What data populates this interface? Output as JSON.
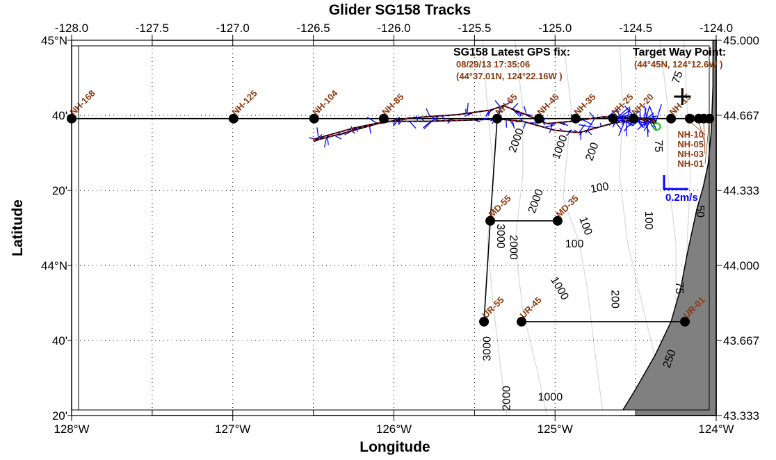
{
  "chart_data": {
    "type": "map",
    "title": "Glider SG158 Tracks",
    "xlabel": "Longitude",
    "ylabel": "Latitude",
    "xlim": [
      -128.0,
      -124.0
    ],
    "ylim": [
      43.333,
      45.0
    ],
    "grid": true,
    "top_ticks": [
      "-128.0",
      "-127.5",
      "-127.0",
      "-126.5",
      "-126.0",
      "-125.5",
      "-125.0",
      "-124.5",
      "-124.0"
    ],
    "bottom_ticks": [
      {
        "lon": -128,
        "label": "128°W"
      },
      {
        "lon": -127,
        "label": "127°W"
      },
      {
        "lon": -126,
        "label": "126°W"
      },
      {
        "lon": -125,
        "label": "125°W"
      },
      {
        "lon": -124,
        "label": "124°W"
      }
    ],
    "left_ticks": [
      {
        "lat": 45.0,
        "label": "45°N"
      },
      {
        "lat": 44.667,
        "label": "40'"
      },
      {
        "lat": 44.333,
        "label": "20'"
      },
      {
        "lat": 44.0,
        "label": "44°N"
      },
      {
        "lat": 43.667,
        "label": "40'"
      },
      {
        "lat": 43.333,
        "label": "20'"
      }
    ],
    "right_ticks": [
      "45.000",
      "44.667",
      "44.333",
      "44.000",
      "43.667",
      "43.333"
    ],
    "stations": [
      {
        "name": "NH-168",
        "lon": -128.0,
        "lat": 44.652
      },
      {
        "name": "NH-125",
        "lon": -126.995,
        "lat": 44.652
      },
      {
        "name": "NH-104",
        "lon": -126.495,
        "lat": 44.652
      },
      {
        "name": "NH-85",
        "lon": -126.063,
        "lat": 44.652
      },
      {
        "name": "NH-65",
        "lon": -125.359,
        "lat": 44.652
      },
      {
        "name": "NH-45",
        "lon": -125.1,
        "lat": 44.652
      },
      {
        "name": "NH-35",
        "lon": -124.872,
        "lat": 44.652
      },
      {
        "name": "NH-25",
        "lon": -124.639,
        "lat": 44.652
      },
      {
        "name": "NH-20",
        "lon": -124.513,
        "lat": 44.652
      },
      {
        "name": "NH-15",
        "lon": -124.28,
        "lat": 44.652
      },
      {
        "name": "NH-10",
        "lon": -124.164,
        "lat": 44.652
      },
      {
        "name": "NH-05",
        "lon": -124.108,
        "lat": 44.652
      },
      {
        "name": "NH-03",
        "lon": -124.078,
        "lat": 44.652
      },
      {
        "name": "NH-01",
        "lon": -124.043,
        "lat": 44.652
      },
      {
        "name": "MD-55",
        "lon": -125.402,
        "lat": 44.198
      },
      {
        "name": "MD-35",
        "lon": -124.984,
        "lat": 44.198
      },
      {
        "name": "UR-55",
        "lon": -125.441,
        "lat": 43.75
      },
      {
        "name": "UR-45",
        "lon": -125.208,
        "lat": 43.75
      },
      {
        "name": "UR-01",
        "lon": -124.194,
        "lat": 43.75
      }
    ],
    "contour_labels": [
      {
        "text": "2000",
        "lon": -125.25,
        "lat": 44.72,
        "rot": -70
      },
      {
        "text": "1000",
        "lon": -124.95,
        "lat": 44.52,
        "rot": -70
      },
      {
        "text": "200",
        "lon": -124.55,
        "lat": 44.78,
        "rot": -70
      },
      {
        "text": "75",
        "lon": -124.22,
        "lat": 44.83,
        "rot": -70
      },
      {
        "text": "75",
        "lon": -124.38,
        "lat": 44.53,
        "rot": 90
      },
      {
        "text": "100",
        "lon": -124.72,
        "lat": 44.33,
        "rot": -10
      },
      {
        "text": "2000",
        "lon": -124.95,
        "lat": 44.22,
        "rot": -70
      },
      {
        "text": "100",
        "lon": -124.83,
        "lat": 44.17,
        "rot": 70
      },
      {
        "text": "100",
        "lon": -124.88,
        "lat": 44.08,
        "rot": 0
      },
      {
        "text": "100",
        "lon": -124.44,
        "lat": 44.2,
        "rot": 90
      },
      {
        "text": "3000",
        "lon": -125.36,
        "lat": 44.13,
        "rot": 90
      },
      {
        "text": "2000",
        "lon": -125.28,
        "lat": 44.08,
        "rot": 90
      },
      {
        "text": "1000",
        "lon": -124.99,
        "lat": 43.89,
        "rot": 60
      },
      {
        "text": "200",
        "lon": -124.65,
        "lat": 43.85,
        "rot": 90
      },
      {
        "text": "75",
        "lon": -124.25,
        "lat": 43.9,
        "rot": 90
      },
      {
        "text": "50",
        "lon": -124.12,
        "lat": 44.24,
        "rot": 90
      },
      {
        "text": "3000",
        "lon": -125.4,
        "lat": 43.63,
        "rot": -90
      },
      {
        "text": "2000",
        "lon": -125.28,
        "lat": 43.41,
        "rot": -90
      },
      {
        "text": "1000",
        "lon": -125.03,
        "lat": 43.4,
        "rot": 0
      },
      {
        "text": "250",
        "lon": -124.27,
        "lat": 43.58,
        "rot": -70
      }
    ],
    "glider_track_out": [
      [
        -126.5,
        44.553
      ],
      [
        -126.3,
        44.59
      ],
      [
        -126.1,
        44.63
      ],
      [
        -125.9,
        44.655
      ],
      [
        -125.6,
        44.67
      ],
      [
        -125.4,
        44.69
      ],
      [
        -125.32,
        44.71
      ],
      [
        -125.2,
        44.675
      ],
      [
        -125.05,
        44.63
      ],
      [
        -124.9,
        44.64
      ],
      [
        -124.7,
        44.66
      ],
      [
        -124.5,
        44.655
      ],
      [
        -124.37,
        44.63
      ]
    ],
    "glider_track_back": [
      [
        -126.5,
        44.56
      ],
      [
        -126.25,
        44.61
      ],
      [
        -126.05,
        44.64
      ],
      [
        -125.8,
        44.64
      ],
      [
        -125.55,
        44.645
      ],
      [
        -125.35,
        44.65
      ],
      [
        -125.2,
        44.64
      ],
      [
        -125.0,
        44.6
      ],
      [
        -124.85,
        44.59
      ],
      [
        -124.65,
        44.63
      ],
      [
        -124.45,
        44.655
      ],
      [
        -124.37,
        44.64
      ]
    ],
    "latest_position": {
      "lon": -124.369,
      "lat": 44.617
    },
    "target_waypoint": {
      "lon": -124.21,
      "lat": 44.75
    }
  },
  "info": {
    "gps_title": "SG158 Latest GPS fix:",
    "gps_time": "08/29/13 17:35:06",
    "gps_pos": "(44°37.01N, 124°22.16W )",
    "target_title": "Target Way Point:",
    "target_pos": "(44°45N, 124°12.6W )",
    "scale_label": "0.2m/s"
  },
  "colors": {
    "station_label": "#8b3a0f",
    "current": "#0000ff",
    "track": "#d01030",
    "land": "#808080",
    "contour": "#d8d8d8",
    "glider": "#00cc00"
  }
}
